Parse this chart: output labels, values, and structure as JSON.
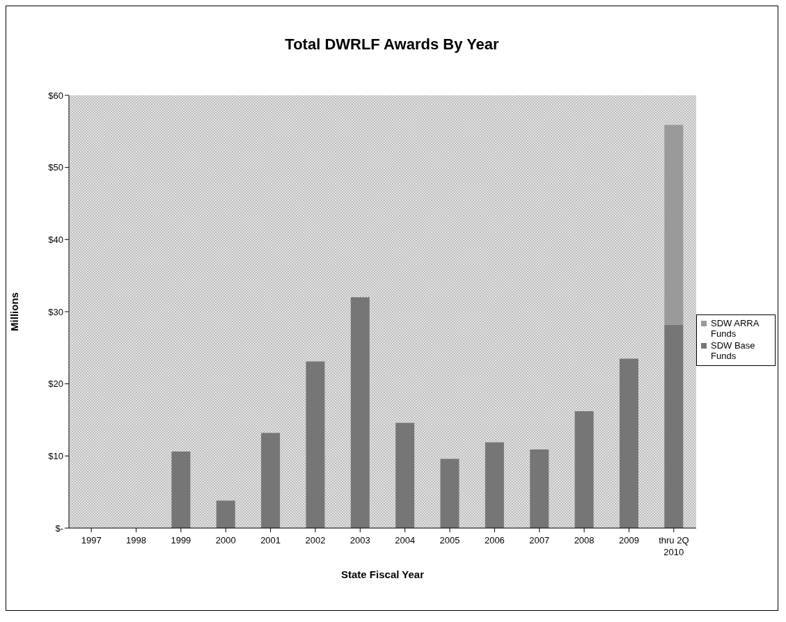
{
  "chart_data": {
    "type": "bar",
    "title": "Total  DWRLF Awards By Year",
    "xlabel": "State Fiscal Year",
    "ylabel": "Millions",
    "categories": [
      "1997",
      "1998",
      "1999",
      "2000",
      "2001",
      "2002",
      "2003",
      "2004",
      "2005",
      "2006",
      "2007",
      "2008",
      "2009",
      "thru 2Q 2010"
    ],
    "stacked": true,
    "series": [
      {
        "name": "SDW Base Funds",
        "color": "#767676",
        "values": [
          0,
          0,
          10.6,
          3.8,
          13.2,
          23.1,
          32.0,
          14.6,
          9.6,
          11.9,
          10.9,
          16.2,
          23.5,
          28.2
        ]
      },
      {
        "name": "SDW ARRA Funds",
        "color": "#9a9a9a",
        "values": [
          0,
          0,
          0,
          0,
          0,
          0,
          0,
          0,
          0,
          0,
          0,
          0,
          0,
          27.7
        ]
      }
    ],
    "ylim": [
      0,
      60
    ],
    "yticks": [
      {
        "value": 0,
        "label": "$-"
      },
      {
        "value": 10,
        "label": "$10"
      },
      {
        "value": 20,
        "label": "$20"
      },
      {
        "value": 30,
        "label": "$30"
      },
      {
        "value": 40,
        "label": "$40"
      },
      {
        "value": 50,
        "label": "$50"
      },
      {
        "value": 60,
        "label": "$60"
      }
    ],
    "legend": "right"
  }
}
